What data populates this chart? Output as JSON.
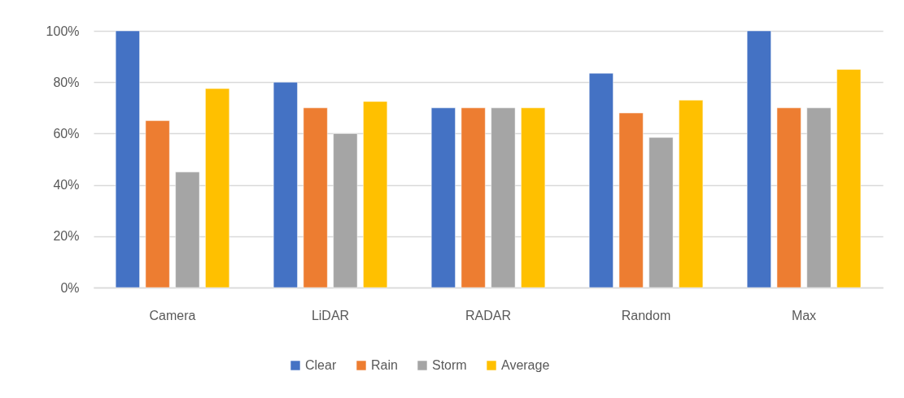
{
  "chart_data": {
    "type": "bar",
    "categories": [
      "Camera",
      "LiDAR",
      "RADAR",
      "Random",
      "Max"
    ],
    "series": [
      {
        "name": "Clear",
        "color": "#4472c4",
        "values": [
          100,
          80,
          70,
          83.5,
          100
        ]
      },
      {
        "name": "Rain",
        "color": "#ed7d31",
        "values": [
          65,
          70,
          70,
          68,
          70
        ]
      },
      {
        "name": "Storm",
        "color": "#a5a5a5",
        "values": [
          45,
          60,
          70,
          58.5,
          70
        ]
      },
      {
        "name": "Average",
        "color": "#ffc000",
        "values": [
          77.5,
          72.5,
          70,
          73,
          85
        ]
      }
    ],
    "ylim": [
      0,
      100
    ],
    "yticks": [
      {
        "value": 0,
        "label": "0%"
      },
      {
        "value": 20,
        "label": "20%"
      },
      {
        "value": 40,
        "label": "40%"
      },
      {
        "value": 60,
        "label": "60%"
      },
      {
        "value": 80,
        "label": "80%"
      },
      {
        "value": 100,
        "label": "100%"
      }
    ],
    "grid": "y",
    "legend": "bottom"
  }
}
